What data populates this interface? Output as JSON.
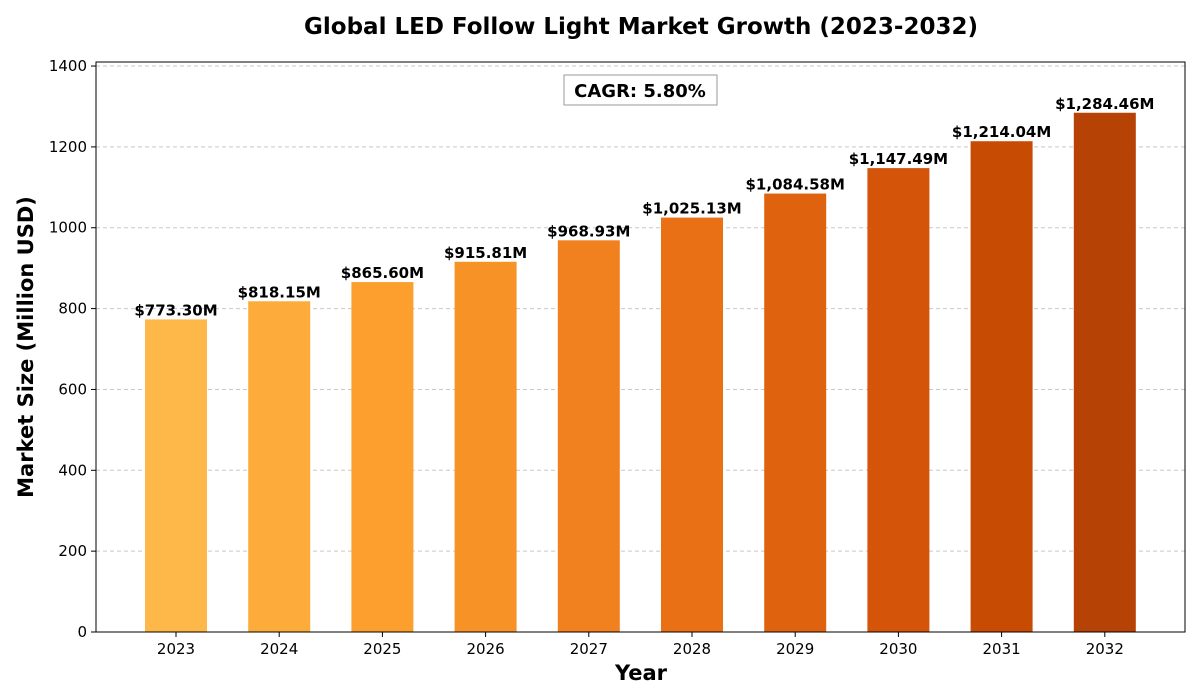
{
  "chart_data": {
    "type": "bar",
    "title": "Global LED Follow Light Market Growth (2023-2032)",
    "xlabel": "Year",
    "ylabel": "Market Size (Million USD)",
    "categories": [
      "2023",
      "2024",
      "2025",
      "2026",
      "2027",
      "2028",
      "2029",
      "2030",
      "2031",
      "2032"
    ],
    "values": [
      773.3,
      818.15,
      865.6,
      915.81,
      968.93,
      1025.13,
      1084.58,
      1147.49,
      1214.04,
      1284.46
    ],
    "data_labels": [
      "$773.30M",
      "$818.15M",
      "$865.60M",
      "$915.81M",
      "$968.93M",
      "$1,025.13M",
      "$1,084.58M",
      "$1,147.49M",
      "$1,214.04M",
      "$1,284.46M"
    ],
    "bar_colors": [
      "#FEB84A",
      "#FDAC3C",
      "#FC9F2F",
      "#F79326",
      "#F1801F",
      "#EA7016",
      "#DF620F",
      "#D4540A",
      "#C84B04",
      "#B64205"
    ],
    "ylim": [
      0,
      1410
    ],
    "yticks": [
      0,
      200,
      400,
      600,
      800,
      1000,
      1200,
      1400
    ],
    "grid": "horizontal dashed",
    "annotation": "CAGR: 5.80%"
  }
}
